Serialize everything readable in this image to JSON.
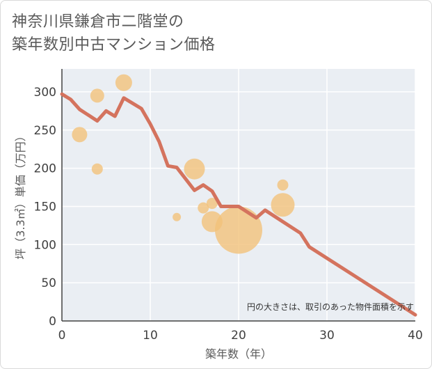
{
  "title": {
    "line1": "神奈川県鎌倉市二階堂の",
    "line2": "築年数別中古マンション価格"
  },
  "chart_data": {
    "type": "scatter",
    "xlabel": "築年数（年）",
    "ylabel": "坪（3.3㎡）単価（万円）",
    "xlim": [
      0,
      40
    ],
    "ylim": [
      0,
      330
    ],
    "xticks": [
      0,
      10,
      20,
      30,
      40
    ],
    "yticks": [
      0,
      50,
      100,
      150,
      200,
      250,
      300
    ],
    "grid": true,
    "note": "円の大きさは、取引のあった物件面積を示す",
    "colors": {
      "line": "#d4735e",
      "bubble": "#f3c27a",
      "plot_bg": "#eaeef3",
      "grid": "#ffffff"
    },
    "line_series": {
      "x": [
        0,
        1,
        2,
        4,
        5,
        6,
        7,
        9,
        10,
        11,
        12,
        13,
        15,
        16,
        17,
        18,
        20,
        22,
        23,
        25,
        27,
        28,
        40
      ],
      "y": [
        297,
        290,
        277,
        262,
        275,
        268,
        292,
        278,
        258,
        235,
        203,
        201,
        171,
        178,
        170,
        150,
        150,
        135,
        145,
        130,
        115,
        97,
        8
      ]
    },
    "bubbles": [
      {
        "x": 2,
        "y": 244,
        "size": 22
      },
      {
        "x": 4,
        "y": 295,
        "size": 20
      },
      {
        "x": 4,
        "y": 199,
        "size": 16
      },
      {
        "x": 7,
        "y": 312,
        "size": 24
      },
      {
        "x": 13,
        "y": 136,
        "size": 12
      },
      {
        "x": 15,
        "y": 199,
        "size": 30
      },
      {
        "x": 16,
        "y": 148,
        "size": 16
      },
      {
        "x": 17,
        "y": 154,
        "size": 16
      },
      {
        "x": 17,
        "y": 130,
        "size": 30
      },
      {
        "x": 20,
        "y": 119,
        "size": 68
      },
      {
        "x": 25,
        "y": 178,
        "size": 16
      },
      {
        "x": 25,
        "y": 152,
        "size": 34
      }
    ]
  }
}
